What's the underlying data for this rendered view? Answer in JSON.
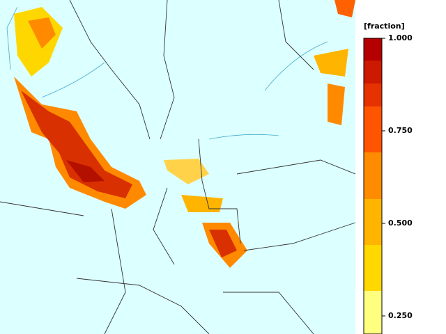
{
  "colorbar": {
    "title": "[fraction]",
    "ticks": [
      {
        "value": 1,
        "label": "1.000"
      },
      {
        "value": 0.75,
        "label": "0.750"
      },
      {
        "value": 0.5,
        "label": "0.500"
      },
      {
        "value": 0.25,
        "label": "0.250"
      }
    ]
  }
}
